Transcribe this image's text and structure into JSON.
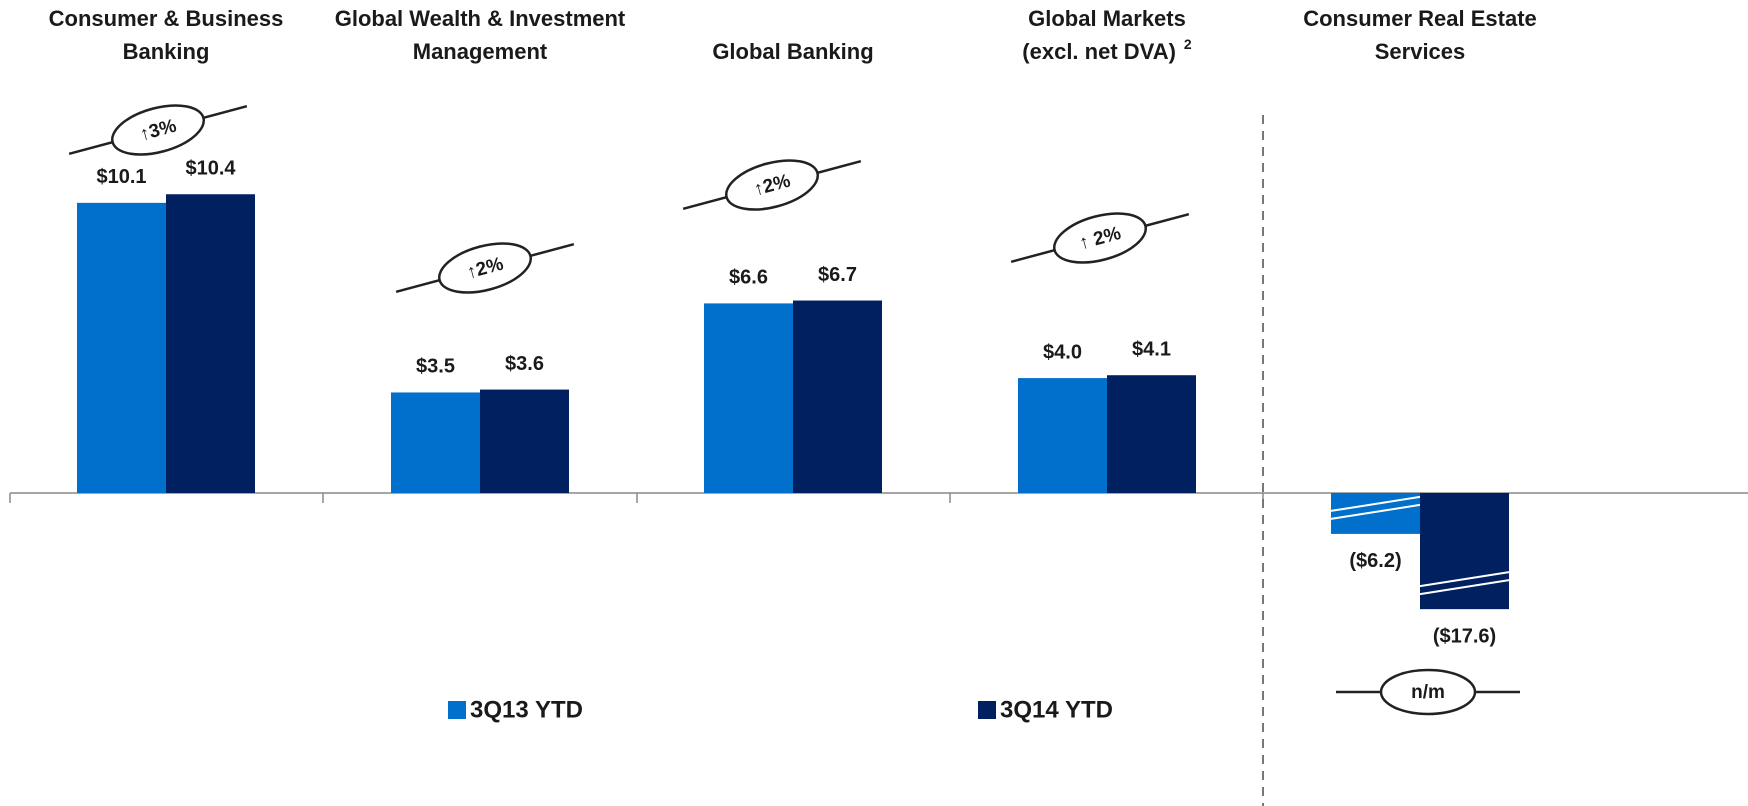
{
  "chart_data": {
    "type": "bar",
    "categories": [
      [
        "Consumer & Business",
        "Banking"
      ],
      [
        "Global Wealth & Investment",
        "Management"
      ],
      [
        "Global Banking"
      ],
      [
        "Global Markets",
        "(excl. net DVA)"
      ],
      [
        "Consumer Real Estate",
        "Services"
      ]
    ],
    "category_notes": [
      null,
      null,
      null,
      "2",
      null
    ],
    "series": [
      {
        "name": "3Q13 YTD",
        "color": "#0070CC",
        "values": [
          10.1,
          3.5,
          6.6,
          4.0,
          -6.2
        ],
        "value_labels": [
          "$10.1",
          "$3.5",
          "$6.6",
          "$4.0",
          "($6.2)"
        ]
      },
      {
        "name": "3Q14 YTD",
        "color": "#002060",
        "values": [
          10.4,
          3.6,
          6.7,
          4.1,
          -17.6
        ],
        "value_labels": [
          "$10.4",
          "$3.6",
          "$6.7",
          "$4.1",
          "($17.6)"
        ]
      }
    ],
    "changes": [
      "↑3%",
      "↑2%",
      "↑2%",
      "↑ 2%",
      "n/m"
    ],
    "ylim": [
      -20,
      11
    ],
    "axis_break": true,
    "grid": false
  }
}
